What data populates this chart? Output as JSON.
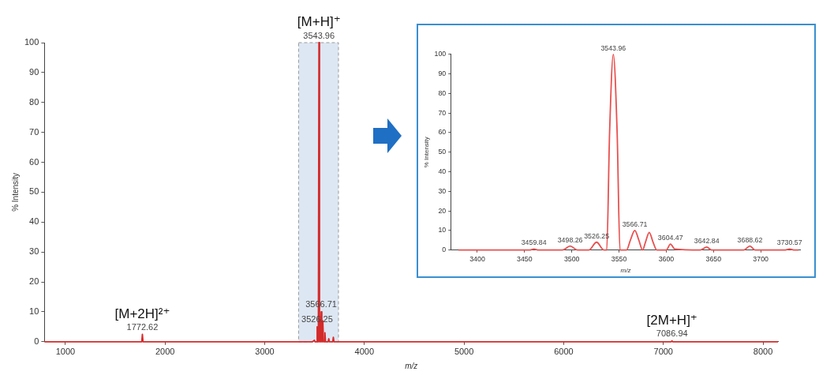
{
  "chart_data": [
    {
      "type": "line",
      "xlabel": "m/z",
      "ylabel": "% Intensity",
      "xlim": [
        790,
        8150
      ],
      "xticks": [
        1000,
        2000,
        3000,
        4000,
        5000,
        6000,
        7000,
        8000
      ],
      "ylim": [
        0,
        100
      ],
      "yticks": [
        0,
        10,
        20,
        30,
        40,
        50,
        60,
        70,
        80,
        90,
        100
      ],
      "grid": false,
      "legend": false,
      "marker": "none",
      "series": [
        {
          "color": "#d42a2a",
          "x": [
            790,
            1766,
            1772.62,
            1779,
            3480,
            3498.26,
            3505,
            3520,
            3526.25,
            3533,
            3538,
            3543.96,
            3550,
            3560,
            3566.71,
            3573,
            3577,
            3583,
            3590,
            3598,
            3604.47,
            3610,
            3636,
            3642.84,
            3649,
            3682,
            3688.62,
            3695,
            7080,
            7086.94,
            7093,
            8150
          ],
          "values": [
            0,
            0,
            2.5,
            0,
            0,
            0.5,
            0,
            0,
            5,
            0,
            0,
            100,
            0,
            0,
            10,
            0,
            0,
            7,
            0,
            0,
            3,
            0,
            0,
            1,
            0,
            0,
            1.5,
            0,
            0,
            0.3,
            0,
            0
          ]
        }
      ],
      "bands": [
        {
          "axis": "x",
          "from": 3340,
          "to": 3740,
          "color": "#dde7f3"
        }
      ],
      "annotations": [
        {
          "text": "3543.96",
          "x": 3543.96,
          "y": 100
        },
        {
          "text": "[M+H]⁺",
          "x": 3543.96,
          "y": 100
        },
        {
          "text": "3566.71",
          "x": 3566.71,
          "y": 10
        },
        {
          "text": "3526.25",
          "x": 3526.25,
          "y": 5
        },
        {
          "text": "1772.62",
          "x": 1772.62,
          "y": 2.5
        },
        {
          "text": "[M+2H]²⁺",
          "x": 1772.62,
          "y": 2.5
        },
        {
          "text": "7086.94",
          "x": 7086.94,
          "y": 0.3
        },
        {
          "text": "[2M+H]⁺",
          "x": 7086.94,
          "y": 0.3
        }
      ]
    },
    {
      "type": "line",
      "xlabel": "m/z",
      "ylabel": "% Intensity",
      "xlim": [
        3372,
        3742
      ],
      "xticks": [
        3400,
        3450,
        3500,
        3550,
        3600,
        3650,
        3700
      ],
      "ylim": [
        0,
        100
      ],
      "yticks": [
        0,
        10,
        20,
        30,
        40,
        50,
        60,
        70,
        80,
        90,
        100
      ],
      "grid": false,
      "legend": false,
      "marker": "none",
      "series": [
        {
          "color": "#e8504f",
          "x": [
            3380,
            3455,
            3459.84,
            3465,
            3490,
            3498.26,
            3506,
            3518,
            3526.25,
            3534,
            3537,
            3540,
            3543.96,
            3548,
            3551,
            3558,
            3562,
            3566.71,
            3571,
            3575,
            3578,
            3582,
            3586,
            3590,
            3600,
            3604.47,
            3609,
            3636,
            3642.84,
            3648,
            3682,
            3688.62,
            3694,
            3725,
            3730.57,
            3736,
            3740
          ],
          "values": [
            0,
            0,
            0.5,
            0,
            0,
            2,
            0,
            0,
            4,
            0,
            0,
            60,
            100,
            60,
            0,
            0,
            5,
            10,
            5,
            0,
            4,
            9,
            4,
            0,
            0,
            3,
            0.5,
            0,
            1.5,
            0,
            0,
            2,
            0,
            0,
            0.5,
            0,
            0
          ]
        }
      ],
      "annotations": [
        {
          "text": "3459.84",
          "x": 3459.84,
          "y": 0.5
        },
        {
          "text": "3498.26",
          "x": 3498.26,
          "y": 2
        },
        {
          "text": "3526.25",
          "x": 3526.25,
          "y": 4
        },
        {
          "text": "3543.96",
          "x": 3543.96,
          "y": 100
        },
        {
          "text": "3566.71",
          "x": 3566.71,
          "y": 10
        },
        {
          "text": "3604.47",
          "x": 3604.47,
          "y": 3
        },
        {
          "text": "3642.84",
          "x": 3642.84,
          "y": 1.5
        },
        {
          "text": "3688.62",
          "x": 3688.62,
          "y": 2
        },
        {
          "text": "3730.57",
          "x": 3730.57,
          "y": 0.5
        }
      ]
    }
  ]
}
